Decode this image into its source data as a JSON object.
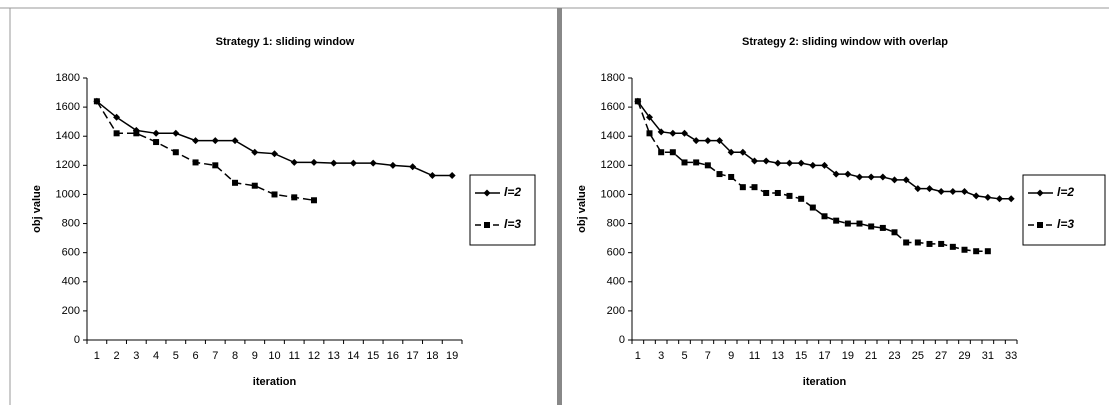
{
  "chart_data": [
    {
      "type": "line",
      "title": "Strategy 1: sliding window",
      "x_label": "iteration",
      "y_label": "obj value",
      "categories": [
        "1",
        "2",
        "3",
        "4",
        "5",
        "6",
        "7",
        "8",
        "9",
        "10",
        "11",
        "12",
        "13",
        "14",
        "15",
        "16",
        "17",
        "18",
        "19"
      ],
      "ylim": [
        0,
        1800
      ],
      "yticks": [
        0,
        200,
        400,
        600,
        800,
        1000,
        1200,
        1400,
        1600,
        1800
      ],
      "grid": false,
      "legend": "right",
      "series": [
        {
          "name": "l=2",
          "color": "#000000",
          "marker": "diamond",
          "dash": false,
          "values": [
            1640,
            1530,
            1440,
            1420,
            1420,
            1370,
            1370,
            1370,
            1290,
            1280,
            1220,
            1220,
            1215,
            1215,
            1215,
            1200,
            1190,
            1130,
            1130
          ]
        },
        {
          "name": "l=3",
          "color": "#000000",
          "marker": "square",
          "dash": true,
          "values": [
            1640,
            1420,
            1420,
            1360,
            1290,
            1220,
            1200,
            1080,
            1060,
            1000,
            980,
            960,
            null,
            null,
            null,
            null,
            null,
            null,
            null
          ]
        }
      ]
    },
    {
      "type": "line",
      "title": "Strategy 2: sliding window with overlap",
      "x_label": "iteration",
      "y_label": "obj value",
      "categories": [
        "1",
        null,
        "3",
        null,
        "5",
        null,
        "7",
        null,
        "9",
        null,
        "11",
        null,
        "13",
        null,
        "15",
        null,
        "17",
        null,
        "19",
        null,
        "21",
        null,
        "23",
        null,
        "25",
        null,
        "27",
        null,
        "29",
        null,
        "31",
        null,
        "33"
      ],
      "ylim": [
        0,
        1800
      ],
      "yticks": [
        0,
        200,
        400,
        600,
        800,
        1000,
        1200,
        1400,
        1600,
        1800
      ],
      "grid": false,
      "legend": "right",
      "series": [
        {
          "name": "l=2",
          "color": "#000000",
          "marker": "diamond",
          "dash": false,
          "values": [
            1640,
            1530,
            1430,
            1420,
            1420,
            1370,
            1370,
            1370,
            1290,
            1290,
            1230,
            1230,
            1215,
            1215,
            1215,
            1200,
            1200,
            1140,
            1140,
            1120,
            1120,
            1120,
            1100,
            1100,
            1040,
            1040,
            1020,
            1020,
            1020,
            990,
            980,
            970,
            970
          ]
        },
        {
          "name": "l=3",
          "color": "#000000",
          "marker": "square",
          "dash": true,
          "values": [
            1640,
            1420,
            1290,
            1290,
            1220,
            1220,
            1200,
            1140,
            1120,
            1050,
            1050,
            1010,
            1010,
            990,
            970,
            910,
            850,
            820,
            800,
            800,
            780,
            770,
            740,
            670,
            670,
            660,
            660,
            640,
            620,
            610,
            610,
            null,
            null
          ]
        }
      ]
    }
  ]
}
